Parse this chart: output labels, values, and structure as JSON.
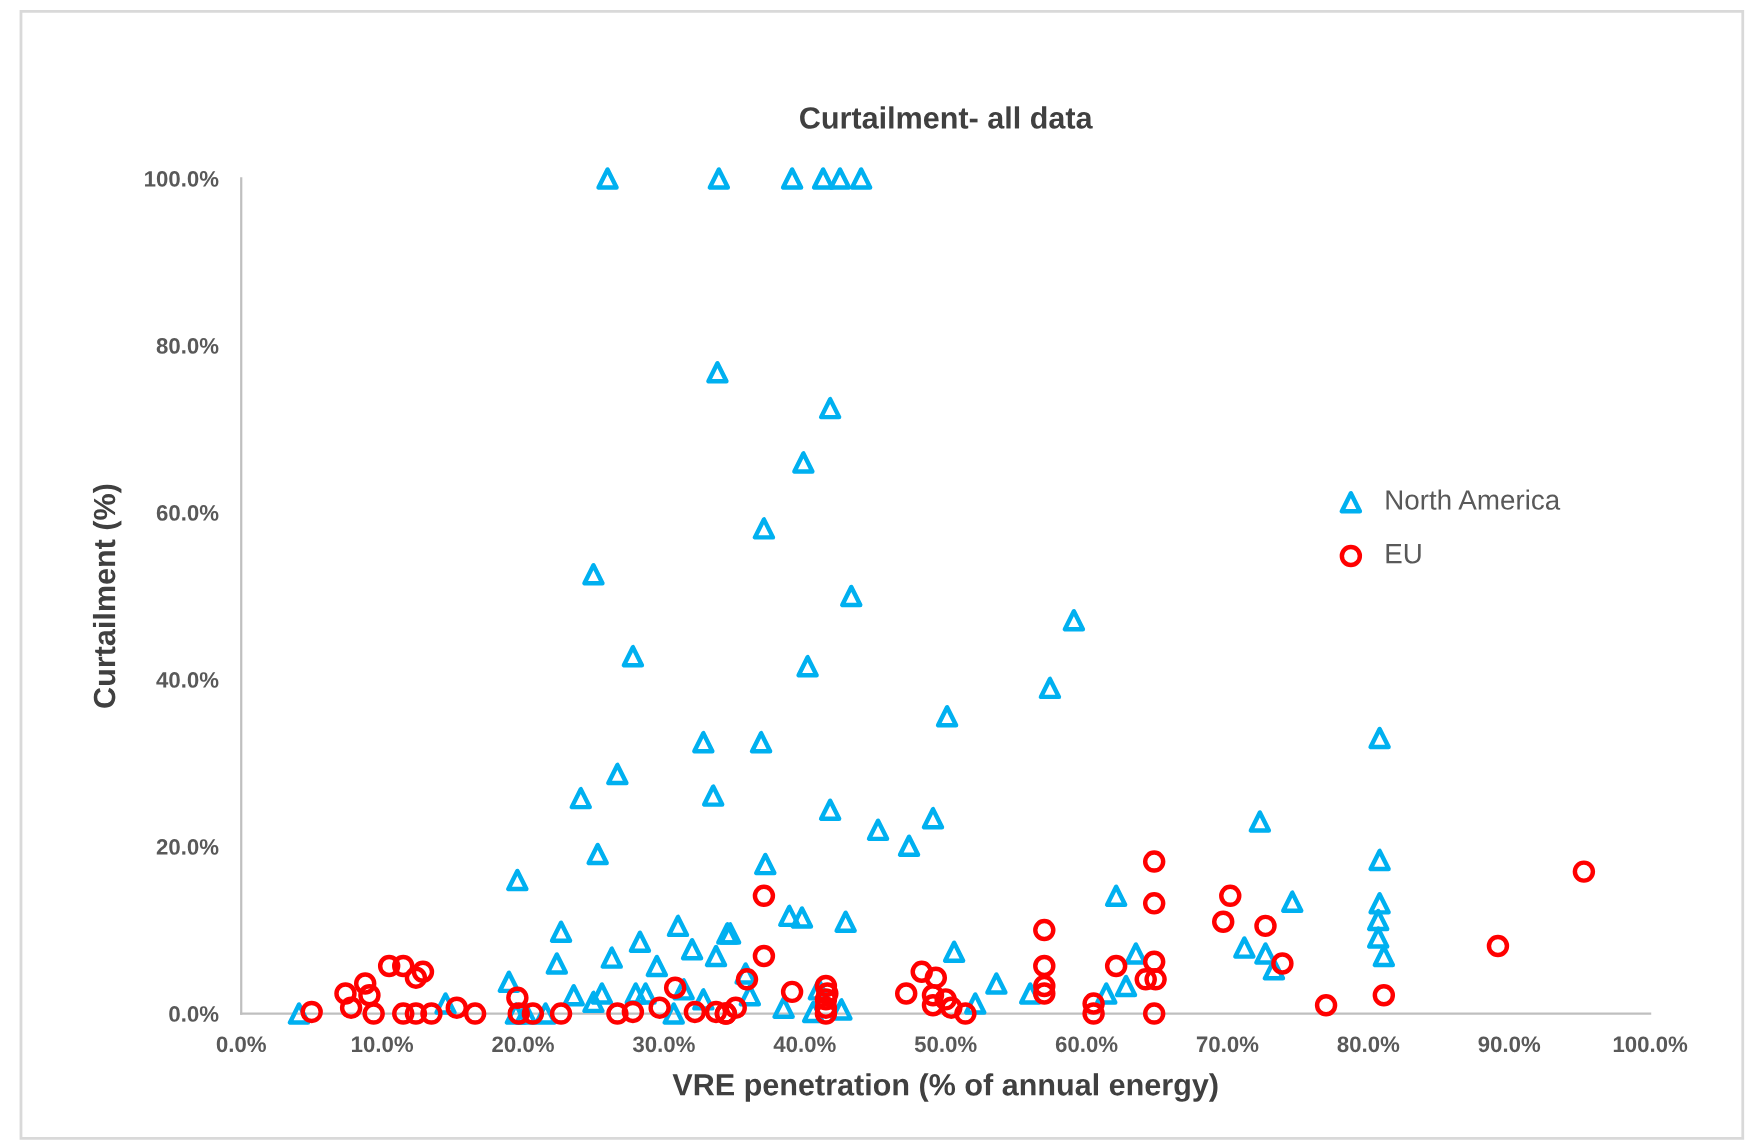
{
  "chart_data": {
    "type": "scatter",
    "title": "Curtailment- all data",
    "xlabel": "VRE penetration (% of annual energy)",
    "ylabel": "Curtailment (%)",
    "xlim": [
      0,
      100
    ],
    "ylim": [
      0,
      100
    ],
    "xticks": [
      {
        "value": 0,
        "label": "0.0%"
      },
      {
        "value": 10,
        "label": "10.0%"
      },
      {
        "value": 20,
        "label": "20.0%"
      },
      {
        "value": 30,
        "label": "30.0%"
      },
      {
        "value": 40,
        "label": "40.0%"
      },
      {
        "value": 50,
        "label": "50.0%"
      },
      {
        "value": 60,
        "label": "60.0%"
      },
      {
        "value": 70,
        "label": "70.0%"
      },
      {
        "value": 80,
        "label": "80.0%"
      },
      {
        "value": 90,
        "label": "90.0%"
      },
      {
        "value": 100,
        "label": "100.0%"
      }
    ],
    "yticks": [
      {
        "value": 0,
        "label": "0.0%"
      },
      {
        "value": 20,
        "label": "20.0%"
      },
      {
        "value": 40,
        "label": "40.0%"
      },
      {
        "value": 60,
        "label": "60.0%"
      },
      {
        "value": 80,
        "label": "80.0%"
      },
      {
        "value": 100,
        "label": "100.0%"
      }
    ],
    "grid": false,
    "legend": "right",
    "series": [
      {
        "name": "North America",
        "color": "#00b0f0",
        "marker": "triangle",
        "x": [
          26.0,
          33.9,
          39.1,
          41.3,
          42.5,
          44.0,
          33.8,
          41.8,
          39.9,
          37.1,
          25.0,
          43.3,
          27.8,
          40.2,
          50.1,
          59.1,
          57.4,
          80.8,
          36.9,
          32.8,
          26.7,
          24.1,
          33.5,
          25.3,
          19.6,
          41.8,
          45.2,
          49.1,
          47.4,
          37.2,
          38.9,
          39.8,
          42.9,
          34.7,
          50.6,
          35.8,
          36.1,
          53.6,
          56.0,
          52.1,
          38.5,
          40.6,
          42.6,
          41.0,
          62.1,
          63.5,
          62.8,
          61.4,
          72.3,
          80.8,
          74.6,
          80.8,
          80.7,
          80.7,
          81.1,
          71.2,
          72.7,
          73.3,
          22.7,
          22.4,
          26.3,
          28.3,
          29.5,
          31.0,
          32.0,
          33.7,
          34.5,
          19.0,
          23.6,
          25.0,
          25.6,
          28.0,
          28.7,
          31.4,
          32.8,
          4.1,
          14.5,
          19.5,
          20.2,
          21.6,
          30.7
        ],
        "values": [
          100,
          100,
          100,
          100,
          100,
          100,
          76.8,
          72.5,
          66.0,
          58.1,
          52.6,
          50.0,
          42.8,
          41.6,
          35.6,
          47.1,
          39.0,
          33.0,
          32.5,
          32.5,
          28.7,
          25.8,
          26.1,
          19.1,
          16.0,
          24.4,
          22.0,
          23.4,
          20.1,
          17.9,
          11.7,
          11.5,
          11.0,
          9.6,
          7.4,
          4.8,
          2.2,
          3.6,
          2.4,
          1.2,
          0.7,
          0.2,
          0.5,
          2.9,
          14.1,
          7.2,
          3.3,
          2.4,
          23.0,
          18.4,
          13.4,
          13.2,
          11.2,
          9.1,
          6.9,
          7.9,
          7.2,
          5.3,
          9.8,
          6.0,
          6.7,
          8.6,
          5.7,
          10.5,
          7.7,
          6.9,
          9.6,
          3.8,
          2.2,
          1.4,
          2.4,
          2.4,
          2.4,
          2.9,
          1.7,
          0,
          1.2,
          0,
          0,
          0,
          0
        ]
      },
      {
        "name": "EU",
        "color": "#ff0000",
        "marker": "circle",
        "x": [
          37.1,
          37.1,
          35.9,
          39.1,
          34.4,
          35.1,
          41.5,
          41.6,
          41.5,
          41.5,
          41.5,
          47.2,
          48.3,
          49.3,
          49.1,
          49.1,
          50.0,
          50.4,
          51.4,
          57.0,
          57.0,
          57.0,
          57.0,
          60.5,
          60.5,
          62.1,
          64.8,
          64.8,
          64.8,
          64.2,
          64.9,
          64.8,
          70.2,
          69.7,
          72.7,
          73.9,
          77.0,
          81.1,
          89.2,
          95.3,
          5.0,
          7.4,
          7.8,
          8.8,
          9.1,
          9.4,
          10.5,
          11.5,
          12.4,
          12.9,
          11.5,
          12.4,
          13.5,
          15.3,
          16.6,
          19.6,
          19.7,
          20.7,
          22.7,
          26.7,
          27.8,
          29.7,
          30.8,
          32.2,
          33.7,
          34.4
        ],
        "values": [
          14.1,
          6.9,
          4.1,
          2.6,
          0,
          0.7,
          3.3,
          2.4,
          1.7,
          0.7,
          0,
          2.4,
          5.0,
          4.3,
          2.2,
          1.0,
          1.7,
          0.7,
          0,
          10.0,
          5.7,
          3.3,
          2.4,
          1.2,
          0,
          5.7,
          18.2,
          13.2,
          6.2,
          4.1,
          4.1,
          0,
          14.1,
          11.0,
          10.5,
          6.0,
          1.0,
          2.2,
          8.1,
          17.0,
          0.2,
          2.4,
          0.7,
          3.6,
          2.2,
          0,
          5.7,
          5.7,
          4.3,
          5.0,
          0,
          0,
          0,
          0.7,
          0,
          1.9,
          0,
          0,
          0,
          0,
          0.2,
          0.7,
          3.1,
          0.2,
          0.2,
          0
        ]
      }
    ]
  }
}
